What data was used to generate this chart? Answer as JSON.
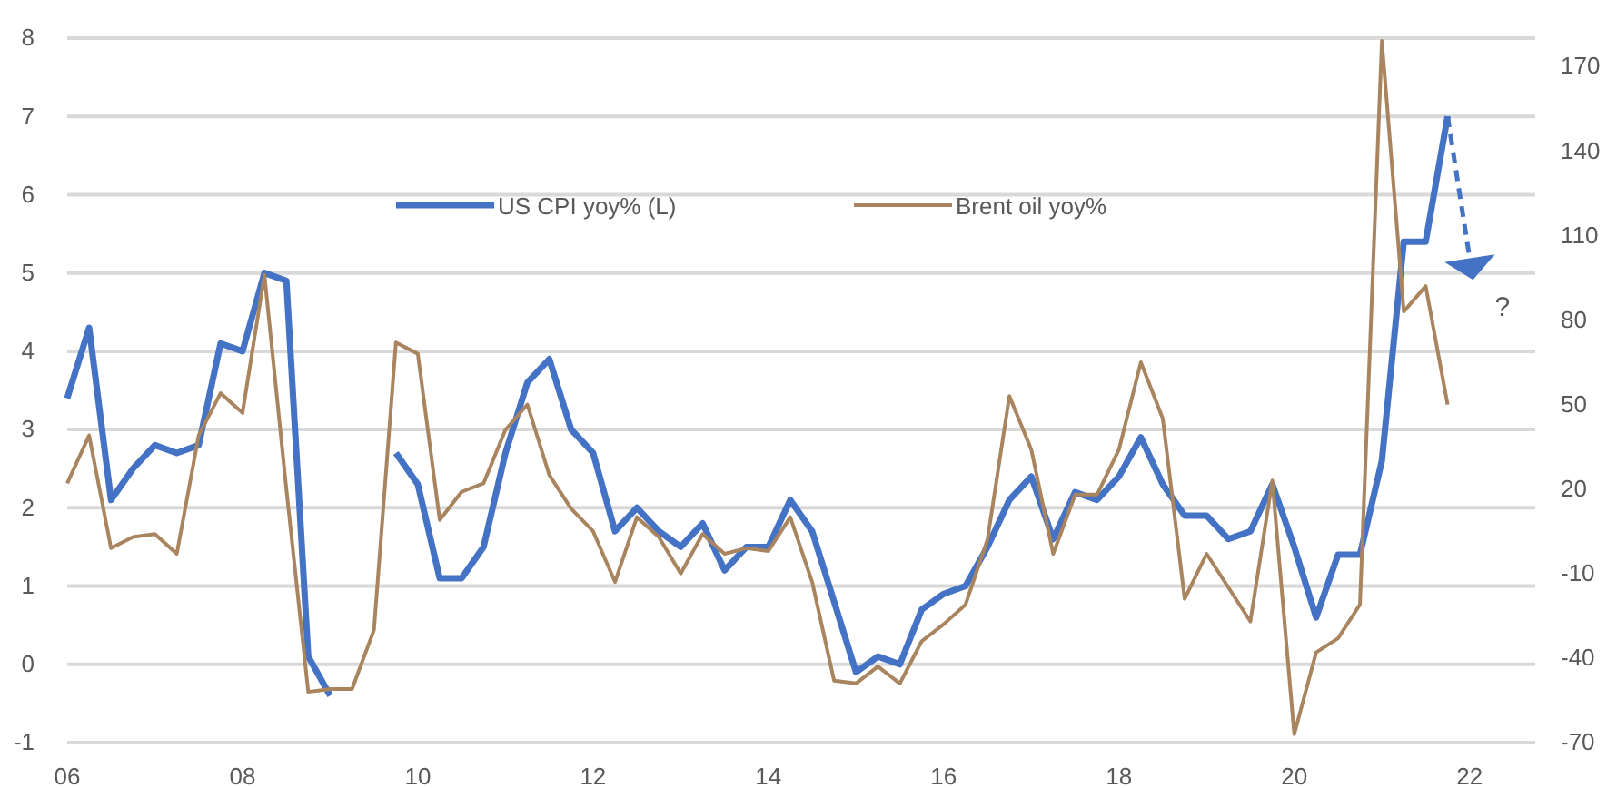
{
  "chart_data": {
    "type": "line",
    "x": [
      2006,
      2006.25,
      2006.5,
      2006.75,
      2007,
      2007.25,
      2007.5,
      2007.75,
      2008,
      2008.25,
      2008.5,
      2008.75,
      2009,
      2009.25,
      2009.5,
      2009.75,
      2010,
      2010.25,
      2010.5,
      2010.75,
      2011,
      2011.25,
      2011.5,
      2011.75,
      2012,
      2012.25,
      2012.5,
      2012.75,
      2013,
      2013.25,
      2013.5,
      2013.75,
      2014,
      2014.25,
      2014.5,
      2014.75,
      2015,
      2015.25,
      2015.5,
      2015.75,
      2016,
      2016.25,
      2016.5,
      2016.75,
      2017,
      2017.25,
      2017.5,
      2017.75,
      2018,
      2018.25,
      2018.5,
      2018.75,
      2019,
      2019.25,
      2019.5,
      2019.75,
      2020,
      2020.25,
      2020.5,
      2020.75,
      2021,
      2021.25,
      2021.5,
      2021.75
    ],
    "series": [
      {
        "name": "US CPI yoy% (L)",
        "color": "#4472c4",
        "values": [
          3.4,
          4.3,
          2.1,
          2.5,
          2.8,
          2.7,
          2.8,
          4.1,
          4.0,
          5.0,
          4.9,
          0.1,
          -0.4,
          null,
          null,
          2.7,
          2.3,
          1.1,
          1.1,
          1.5,
          2.7,
          3.6,
          3.9,
          3.0,
          2.7,
          1.7,
          2.0,
          1.7,
          1.5,
          1.8,
          1.2,
          1.5,
          1.5,
          2.1,
          1.7,
          0.8,
          -0.1,
          0.1,
          0.0,
          0.7,
          0.9,
          1.0,
          1.5,
          2.1,
          2.4,
          1.6,
          2.2,
          2.1,
          2.4,
          2.9,
          2.3,
          1.9,
          1.9,
          1.6,
          1.7,
          2.3,
          1.5,
          0.6,
          1.4,
          1.4,
          2.6,
          5.4,
          5.4,
          7.0
        ]
      },
      {
        "name": "Brent oil yoy%",
        "color": "#a9855f",
        "axis": "y2",
        "values": [
          22,
          39,
          -1,
          3,
          4,
          -3,
          39,
          54,
          47,
          96,
          20,
          -52,
          -51,
          -51,
          -30,
          72,
          68,
          9,
          19,
          22,
          41,
          50,
          25,
          13,
          5,
          -13,
          10,
          3,
          -10,
          4,
          -3,
          -1,
          -2,
          10,
          -13,
          -48,
          -49,
          -43,
          -49,
          -34,
          -28,
          -21,
          2,
          53,
          34,
          -3,
          18,
          18,
          34,
          65,
          45,
          -19,
          -3,
          -15,
          -27,
          23,
          -67,
          -38,
          -33,
          -21,
          179,
          83,
          92,
          50
        ]
      }
    ],
    "xlim": [
      2006,
      2022.75
    ],
    "xticks": [
      {
        "value": 2006,
        "label": "06"
      },
      {
        "value": 2008,
        "label": "08"
      },
      {
        "value": 2010,
        "label": "10"
      },
      {
        "value": 2012,
        "label": "12"
      },
      {
        "value": 2014,
        "label": "14"
      },
      {
        "value": 2016,
        "label": "16"
      },
      {
        "value": 2018,
        "label": "18"
      },
      {
        "value": 2020,
        "label": "20"
      },
      {
        "value": 2022,
        "label": "22"
      }
    ],
    "ylim": [
      -1,
      8
    ],
    "yticks": [
      -1,
      0,
      1,
      2,
      3,
      4,
      5,
      6,
      7,
      8
    ],
    "y2lim": [
      -70,
      180
    ],
    "y2ticks": [
      -70,
      -40,
      -10,
      20,
      50,
      80,
      110,
      140,
      170
    ],
    "grid": "y",
    "legend": "top",
    "annotations": [
      "?"
    ]
  }
}
